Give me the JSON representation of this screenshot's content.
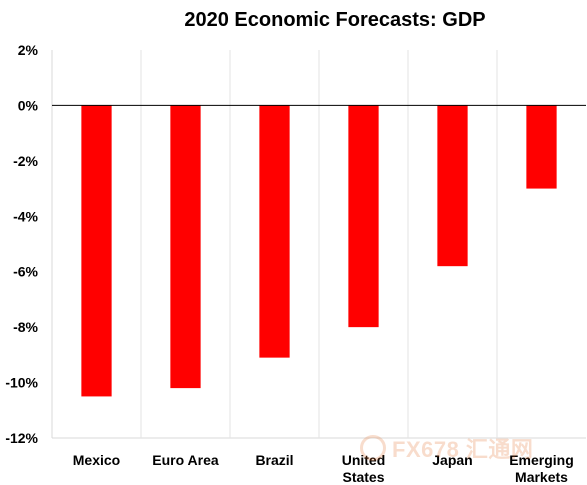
{
  "chart_data": {
    "type": "bar",
    "title": "2020 Economic Forecasts: GDP",
    "categories": [
      "Mexico",
      "Euro Area",
      "Brazil",
      "United States",
      "Japan",
      "Emerging Markets"
    ],
    "category_label_lines": [
      [
        "Mexico"
      ],
      [
        "Euro Area"
      ],
      [
        "Brazil"
      ],
      [
        "United",
        "States"
      ],
      [
        "Japan"
      ],
      [
        "Emerging",
        "Markets"
      ]
    ],
    "values": [
      -10.5,
      -10.2,
      -9.1,
      -8.0,
      -5.8,
      -3.0
    ],
    "ylim": [
      -12,
      2
    ],
    "yticks": [
      2,
      0,
      -2,
      -4,
      -6,
      -8,
      -10,
      -12
    ],
    "ytick_labels": [
      "2%",
      "0%",
      "-2%",
      "-4%",
      "-6%",
      "-8%",
      "-10%",
      "-12%"
    ],
    "xlabel": "",
    "ylabel": "",
    "bar_color": "#ff0000",
    "grid": "vertical separators only",
    "legend": "none"
  },
  "watermark": {
    "text": "FX678 汇通网"
  }
}
